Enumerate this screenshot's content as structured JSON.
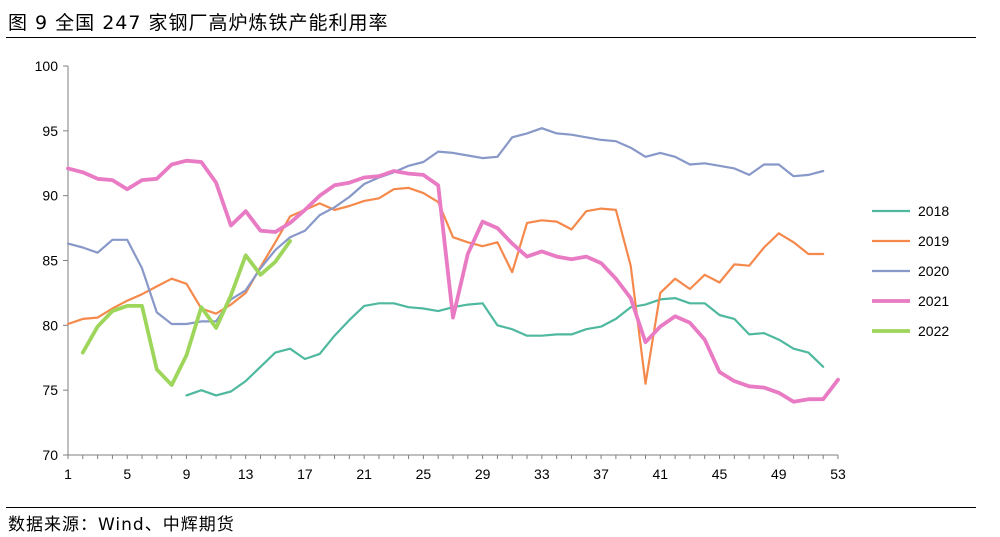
{
  "figure": {
    "title": "图 9  全国 247 家钢厂高炉炼铁产能利用率",
    "source": "数据来源：Wind、中辉期货"
  },
  "chart_data": {
    "type": "line",
    "xlim": [
      1,
      53
    ],
    "ylim": [
      70,
      100
    ],
    "x_ticks": [
      1,
      5,
      9,
      13,
      17,
      21,
      25,
      29,
      33,
      37,
      41,
      45,
      49,
      53
    ],
    "y_ticks": [
      70,
      75,
      80,
      85,
      90,
      95,
      100
    ],
    "grid": false,
    "legend_position": "right",
    "series": [
      {
        "name": "2018",
        "color": "#4fb99f",
        "width": 2.2,
        "points": [
          [
            9,
            74.6
          ],
          [
            10,
            75.0
          ],
          [
            11,
            74.6
          ],
          [
            12,
            74.9
          ],
          [
            13,
            75.7
          ],
          [
            14,
            76.8
          ],
          [
            15,
            77.9
          ],
          [
            16,
            78.2
          ],
          [
            17,
            77.4
          ],
          [
            18,
            77.8
          ],
          [
            19,
            79.2
          ],
          [
            20,
            80.4
          ],
          [
            21,
            81.5
          ],
          [
            22,
            81.7
          ],
          [
            23,
            81.7
          ],
          [
            24,
            81.4
          ],
          [
            25,
            81.3
          ],
          [
            26,
            81.1
          ],
          [
            27,
            81.4
          ],
          [
            28,
            81.6
          ],
          [
            29,
            81.7
          ],
          [
            30,
            80.0
          ],
          [
            31,
            79.7
          ],
          [
            32,
            79.2
          ],
          [
            33,
            79.2
          ],
          [
            34,
            79.3
          ],
          [
            35,
            79.3
          ],
          [
            36,
            79.7
          ],
          [
            37,
            79.9
          ],
          [
            38,
            80.5
          ],
          [
            39,
            81.4
          ],
          [
            40,
            81.6
          ],
          [
            41,
            82.0
          ],
          [
            42,
            82.1
          ],
          [
            43,
            81.7
          ],
          [
            44,
            81.7
          ],
          [
            45,
            80.8
          ],
          [
            46,
            80.5
          ],
          [
            47,
            79.3
          ],
          [
            48,
            79.4
          ],
          [
            49,
            78.9
          ],
          [
            50,
            78.2
          ],
          [
            51,
            77.9
          ],
          [
            52,
            76.8
          ]
        ]
      },
      {
        "name": "2019",
        "color": "#f5894c",
        "width": 2.2,
        "points": [
          [
            1,
            80.1
          ],
          [
            2,
            80.5
          ],
          [
            3,
            80.6
          ],
          [
            4,
            81.3
          ],
          [
            5,
            81.9
          ],
          [
            6,
            82.4
          ],
          [
            7,
            83.0
          ],
          [
            8,
            83.6
          ],
          [
            9,
            83.2
          ],
          [
            10,
            81.3
          ],
          [
            11,
            80.9
          ],
          [
            12,
            81.6
          ],
          [
            13,
            82.5
          ],
          [
            14,
            84.5
          ],
          [
            15,
            86.4
          ],
          [
            16,
            88.4
          ],
          [
            17,
            88.9
          ],
          [
            18,
            89.4
          ],
          [
            19,
            88.9
          ],
          [
            20,
            89.2
          ],
          [
            21,
            89.6
          ],
          [
            22,
            89.8
          ],
          [
            23,
            90.5
          ],
          [
            24,
            90.6
          ],
          [
            25,
            90.2
          ],
          [
            26,
            89.5
          ],
          [
            27,
            86.8
          ],
          [
            28,
            86.4
          ],
          [
            29,
            86.1
          ],
          [
            30,
            86.4
          ],
          [
            31,
            84.1
          ],
          [
            32,
            87.9
          ],
          [
            33,
            88.1
          ],
          [
            34,
            88.0
          ],
          [
            35,
            87.4
          ],
          [
            36,
            88.8
          ],
          [
            37,
            89.0
          ],
          [
            38,
            88.9
          ],
          [
            39,
            84.6
          ],
          [
            40,
            75.5
          ],
          [
            41,
            82.5
          ],
          [
            42,
            83.6
          ],
          [
            43,
            82.8
          ],
          [
            44,
            83.9
          ],
          [
            45,
            83.3
          ],
          [
            46,
            84.7
          ],
          [
            47,
            84.6
          ],
          [
            48,
            86.0
          ],
          [
            49,
            87.1
          ],
          [
            50,
            86.4
          ],
          [
            51,
            85.5
          ],
          [
            52,
            85.5
          ]
        ]
      },
      {
        "name": "2020",
        "color": "#8898c8",
        "width": 2.2,
        "points": [
          [
            1,
            86.3
          ],
          [
            2,
            86.0
          ],
          [
            3,
            85.6
          ],
          [
            4,
            86.6
          ],
          [
            5,
            86.6
          ],
          [
            6,
            84.4
          ],
          [
            7,
            81.0
          ],
          [
            8,
            80.1
          ],
          [
            9,
            80.1
          ],
          [
            10,
            80.3
          ],
          [
            11,
            80.3
          ],
          [
            12,
            82.0
          ],
          [
            13,
            82.7
          ],
          [
            14,
            84.4
          ],
          [
            15,
            85.8
          ],
          [
            16,
            86.8
          ],
          [
            17,
            87.3
          ],
          [
            18,
            88.5
          ],
          [
            19,
            89.1
          ],
          [
            20,
            89.9
          ],
          [
            21,
            90.9
          ],
          [
            22,
            91.4
          ],
          [
            23,
            91.8
          ],
          [
            24,
            92.3
          ],
          [
            25,
            92.6
          ],
          [
            26,
            93.4
          ],
          [
            27,
            93.3
          ],
          [
            28,
            93.1
          ],
          [
            29,
            92.9
          ],
          [
            30,
            93.0
          ],
          [
            31,
            94.5
          ],
          [
            32,
            94.8
          ],
          [
            33,
            95.2
          ],
          [
            34,
            94.8
          ],
          [
            35,
            94.7
          ],
          [
            36,
            94.5
          ],
          [
            37,
            94.3
          ],
          [
            38,
            94.2
          ],
          [
            39,
            93.7
          ],
          [
            40,
            93.0
          ],
          [
            41,
            93.3
          ],
          [
            42,
            93.0
          ],
          [
            43,
            92.4
          ],
          [
            44,
            92.5
          ],
          [
            45,
            92.3
          ],
          [
            46,
            92.1
          ],
          [
            47,
            91.6
          ],
          [
            48,
            92.4
          ],
          [
            49,
            92.4
          ],
          [
            50,
            91.5
          ],
          [
            51,
            91.6
          ],
          [
            52,
            91.9
          ]
        ]
      },
      {
        "name": "2021",
        "color": "#e87bc3",
        "width": 3.8,
        "points": [
          [
            1,
            92.1
          ],
          [
            2,
            91.8
          ],
          [
            3,
            91.3
          ],
          [
            4,
            91.2
          ],
          [
            5,
            90.5
          ],
          [
            6,
            91.2
          ],
          [
            7,
            91.3
          ],
          [
            8,
            92.4
          ],
          [
            9,
            92.7
          ],
          [
            10,
            92.6
          ],
          [
            11,
            91.0
          ],
          [
            12,
            87.7
          ],
          [
            13,
            88.8
          ],
          [
            14,
            87.3
          ],
          [
            15,
            87.2
          ],
          [
            16,
            87.9
          ],
          [
            17,
            88.9
          ],
          [
            18,
            90.0
          ],
          [
            19,
            90.8
          ],
          [
            20,
            91.0
          ],
          [
            21,
            91.4
          ],
          [
            22,
            91.5
          ],
          [
            23,
            91.9
          ],
          [
            24,
            91.7
          ],
          [
            25,
            91.6
          ],
          [
            26,
            90.8
          ],
          [
            27,
            80.6
          ],
          [
            28,
            85.5
          ],
          [
            29,
            88.0
          ],
          [
            30,
            87.5
          ],
          [
            31,
            86.3
          ],
          [
            32,
            85.3
          ],
          [
            33,
            85.7
          ],
          [
            34,
            85.3
          ],
          [
            35,
            85.1
          ],
          [
            36,
            85.3
          ],
          [
            37,
            84.8
          ],
          [
            38,
            83.6
          ],
          [
            39,
            82.1
          ],
          [
            40,
            78.7
          ],
          [
            41,
            79.9
          ],
          [
            42,
            80.7
          ],
          [
            43,
            80.2
          ],
          [
            44,
            78.9
          ],
          [
            45,
            76.4
          ],
          [
            46,
            75.7
          ],
          [
            47,
            75.3
          ],
          [
            48,
            75.2
          ],
          [
            49,
            74.8
          ],
          [
            50,
            74.1
          ],
          [
            51,
            74.3
          ],
          [
            52,
            74.3
          ],
          [
            53,
            75.8
          ]
        ]
      },
      {
        "name": "2022",
        "color": "#9ed65c",
        "width": 3.8,
        "points": [
          [
            2,
            77.9
          ],
          [
            3,
            79.9
          ],
          [
            4,
            81.1
          ],
          [
            5,
            81.5
          ],
          [
            6,
            81.5
          ],
          [
            7,
            76.6
          ],
          [
            8,
            75.4
          ],
          [
            9,
            77.7
          ],
          [
            10,
            81.4
          ],
          [
            11,
            79.8
          ],
          [
            12,
            82.3
          ],
          [
            13,
            85.4
          ],
          [
            14,
            83.9
          ],
          [
            15,
            84.9
          ],
          [
            16,
            86.5
          ]
        ]
      }
    ]
  }
}
